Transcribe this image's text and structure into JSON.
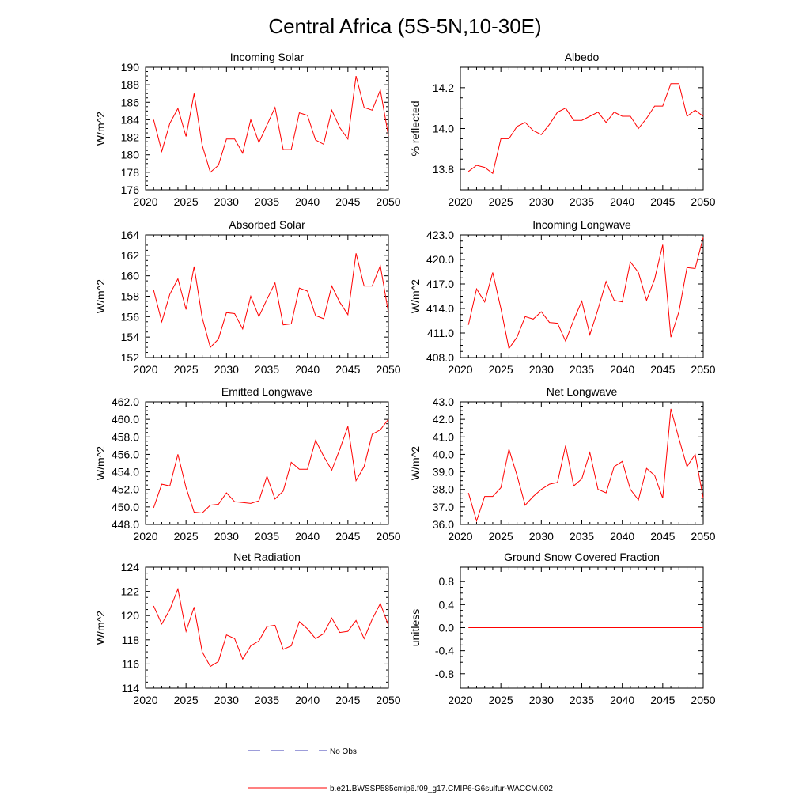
{
  "page_title": "Central Africa (5S-5N,10-30E)",
  "legend": {
    "obs_label": "No Obs",
    "obs_color": "#3b3bb5",
    "model_label": "b.e21.BWSSP585cmip6.f09_g17.CMIP6-G6sulfur-WACCM.002",
    "model_color": "#ff0000"
  },
  "chart_data": [
    {
      "type": "line",
      "title": "Incoming Solar",
      "ylabel": "W/m^2",
      "xlim": [
        2020,
        2050
      ],
      "ylim": [
        176,
        190
      ],
      "xticks": [
        "2020",
        "2025",
        "2030",
        "2035",
        "2040",
        "2045",
        "2050"
      ],
      "yticks": [
        "176",
        "178",
        "180",
        "182",
        "184",
        "186",
        "188",
        "190"
      ],
      "x": [
        2021,
        2022,
        2023,
        2024,
        2025,
        2026,
        2027,
        2028,
        2029,
        2030,
        2031,
        2032,
        2033,
        2034,
        2035,
        2036,
        2037,
        2038,
        2039,
        2040,
        2041,
        2042,
        2043,
        2044,
        2045,
        2046,
        2047,
        2048,
        2049,
        2050
      ],
      "series": [
        {
          "values": [
            184.0,
            180.4,
            183.6,
            185.3,
            182.1,
            187.0,
            181.1,
            178.0,
            178.8,
            181.8,
            181.8,
            180.2,
            184.0,
            181.4,
            183.4,
            185.4,
            180.6,
            180.6,
            184.8,
            184.5,
            181.7,
            181.2,
            185.1,
            183.1,
            181.8,
            189.0,
            185.4,
            185.1,
            187.4,
            182.2
          ]
        }
      ]
    },
    {
      "type": "line",
      "title": "Albedo",
      "ylabel": "% reflected",
      "xlim": [
        2020,
        2050
      ],
      "ylim": [
        13.7,
        14.3
      ],
      "xticks": [
        "2020",
        "2025",
        "2030",
        "2035",
        "2040",
        "2045",
        "2050"
      ],
      "yticks": [
        "13.8",
        "14.0",
        "14.2"
      ],
      "x": [
        2021,
        2022,
        2023,
        2024,
        2025,
        2026,
        2027,
        2028,
        2029,
        2030,
        2031,
        2032,
        2033,
        2034,
        2035,
        2036,
        2037,
        2038,
        2039,
        2040,
        2041,
        2042,
        2043,
        2044,
        2045,
        2046,
        2047,
        2048,
        2049,
        2050
      ],
      "series": [
        {
          "values": [
            13.79,
            13.82,
            13.81,
            13.78,
            13.95,
            13.95,
            14.01,
            14.03,
            13.99,
            13.97,
            14.02,
            14.08,
            14.1,
            14.04,
            14.04,
            14.06,
            14.08,
            14.03,
            14.08,
            14.06,
            14.06,
            14.0,
            14.05,
            14.11,
            14.11,
            14.22,
            14.22,
            14.06,
            14.09,
            14.06
          ]
        }
      ]
    },
    {
      "type": "line",
      "title": "Absorbed Solar",
      "ylabel": "W/m^2",
      "xlim": [
        2020,
        2050
      ],
      "ylim": [
        152,
        164
      ],
      "xticks": [
        "2020",
        "2025",
        "2030",
        "2035",
        "2040",
        "2045",
        "2050"
      ],
      "yticks": [
        "152",
        "154",
        "156",
        "158",
        "160",
        "162",
        "164"
      ],
      "x": [
        2021,
        2022,
        2023,
        2024,
        2025,
        2026,
        2027,
        2028,
        2029,
        2030,
        2031,
        2032,
        2033,
        2034,
        2035,
        2036,
        2037,
        2038,
        2039,
        2040,
        2041,
        2042,
        2043,
        2044,
        2045,
        2046,
        2047,
        2048,
        2049,
        2050
      ],
      "series": [
        {
          "values": [
            158.6,
            155.5,
            158.2,
            159.7,
            156.7,
            160.9,
            155.9,
            153.0,
            153.8,
            156.4,
            156.3,
            154.8,
            158.0,
            156.0,
            157.7,
            159.3,
            155.2,
            155.3,
            158.8,
            158.5,
            156.1,
            155.8,
            159.0,
            157.4,
            156.2,
            162.2,
            159.0,
            159.0,
            161.0,
            156.4
          ]
        }
      ]
    },
    {
      "type": "line",
      "title": "Incoming Longwave",
      "ylabel": "W/m^2",
      "xlim": [
        2020,
        2050
      ],
      "ylim": [
        408.0,
        423.0
      ],
      "xticks": [
        "2020",
        "2025",
        "2030",
        "2035",
        "2040",
        "2045",
        "2050"
      ],
      "yticks": [
        "408.0",
        "411.0",
        "414.0",
        "417.0",
        "420.0",
        "423.0"
      ],
      "x": [
        2021,
        2022,
        2023,
        2024,
        2025,
        2026,
        2027,
        2028,
        2029,
        2030,
        2031,
        2032,
        2033,
        2034,
        2035,
        2036,
        2037,
        2038,
        2039,
        2040,
        2041,
        2042,
        2043,
        2044,
        2045,
        2046,
        2047,
        2048,
        2049,
        2050
      ],
      "series": [
        {
          "values": [
            412.0,
            416.4,
            414.8,
            418.4,
            414.0,
            409.1,
            410.5,
            413.0,
            412.7,
            413.6,
            412.3,
            412.2,
            410.0,
            412.6,
            414.9,
            410.8,
            413.9,
            417.3,
            415.0,
            414.8,
            419.7,
            418.4,
            415.0,
            417.6,
            421.8,
            410.5,
            413.6,
            419.0,
            418.9,
            422.7
          ]
        }
      ]
    },
    {
      "type": "line",
      "title": "Emitted Longwave",
      "ylabel": "W/m^2",
      "xlim": [
        2020,
        2050
      ],
      "ylim": [
        448.0,
        462.0
      ],
      "xticks": [
        "2020",
        "2025",
        "2030",
        "2035",
        "2040",
        "2045",
        "2050"
      ],
      "yticks": [
        "448.0",
        "450.0",
        "452.0",
        "454.0",
        "456.0",
        "458.0",
        "460.0",
        "462.0"
      ],
      "x": [
        2021,
        2022,
        2023,
        2024,
        2025,
        2026,
        2027,
        2028,
        2029,
        2030,
        2031,
        2032,
        2033,
        2034,
        2035,
        2036,
        2037,
        2038,
        2039,
        2040,
        2041,
        2042,
        2043,
        2044,
        2045,
        2046,
        2047,
        2048,
        2049,
        2050
      ],
      "series": [
        {
          "values": [
            449.9,
            452.6,
            452.4,
            456.0,
            452.2,
            449.4,
            449.3,
            450.2,
            450.3,
            451.6,
            450.6,
            450.5,
            450.4,
            450.7,
            453.5,
            450.9,
            451.8,
            455.1,
            454.3,
            454.3,
            457.6,
            455.8,
            454.2,
            456.6,
            459.2,
            453.0,
            454.6,
            458.3,
            458.8,
            460.0
          ]
        }
      ]
    },
    {
      "type": "line",
      "title": "Net Longwave",
      "ylabel": "W/m^2",
      "xlim": [
        2020,
        2050
      ],
      "ylim": [
        36.0,
        43.0
      ],
      "xticks": [
        "2020",
        "2025",
        "2030",
        "2035",
        "2040",
        "2045",
        "2050"
      ],
      "yticks": [
        "36.0",
        "37.0",
        "38.0",
        "39.0",
        "40.0",
        "41.0",
        "42.0",
        "43.0"
      ],
      "x": [
        2021,
        2022,
        2023,
        2024,
        2025,
        2026,
        2027,
        2028,
        2029,
        2030,
        2031,
        2032,
        2033,
        2034,
        2035,
        2036,
        2037,
        2038,
        2039,
        2040,
        2041,
        2042,
        2043,
        2044,
        2045,
        2046,
        2047,
        2048,
        2049,
        2050
      ],
      "series": [
        {
          "values": [
            37.8,
            36.2,
            37.6,
            37.6,
            38.1,
            40.3,
            38.8,
            37.1,
            37.6,
            38.0,
            38.3,
            38.4,
            40.5,
            38.2,
            38.6,
            40.1,
            38.0,
            37.8,
            39.3,
            39.6,
            38.0,
            37.4,
            39.2,
            38.8,
            37.5,
            42.6,
            40.9,
            39.3,
            40.0,
            37.5
          ]
        }
      ]
    },
    {
      "type": "line",
      "title": "Net Radiation",
      "ylabel": "W/m^2",
      "xlim": [
        2020,
        2050
      ],
      "ylim": [
        114,
        124
      ],
      "xticks": [
        "2020",
        "2025",
        "2030",
        "2035",
        "2040",
        "2045",
        "2050"
      ],
      "yticks": [
        "114",
        "116",
        "118",
        "120",
        "122",
        "124"
      ],
      "x": [
        2021,
        2022,
        2023,
        2024,
        2025,
        2026,
        2027,
        2028,
        2029,
        2030,
        2031,
        2032,
        2033,
        2034,
        2035,
        2036,
        2037,
        2038,
        2039,
        2040,
        2041,
        2042,
        2043,
        2044,
        2045,
        2046,
        2047,
        2048,
        2049,
        2050
      ],
      "series": [
        {
          "values": [
            120.8,
            119.3,
            120.5,
            122.2,
            118.7,
            120.7,
            117.0,
            115.8,
            116.2,
            118.4,
            118.1,
            116.4,
            117.5,
            117.9,
            119.1,
            119.2,
            117.2,
            117.5,
            119.5,
            118.9,
            118.1,
            118.5,
            119.8,
            118.6,
            118.7,
            119.6,
            118.1,
            119.7,
            121.0,
            119.2
          ]
        }
      ]
    },
    {
      "type": "line",
      "title": "Ground Snow Covered Fraction",
      "ylabel": "unitless",
      "xlim": [
        2020,
        2050
      ],
      "ylim": [
        -1.05,
        1.05
      ],
      "xticks": [
        "2020",
        "2025",
        "2030",
        "2035",
        "2040",
        "2045",
        "2050"
      ],
      "yticks": [
        "-0.8",
        "-0.4",
        "0.0",
        "0.4",
        "0.8"
      ],
      "x": [
        2021,
        2022,
        2023,
        2024,
        2025,
        2026,
        2027,
        2028,
        2029,
        2030,
        2031,
        2032,
        2033,
        2034,
        2035,
        2036,
        2037,
        2038,
        2039,
        2040,
        2041,
        2042,
        2043,
        2044,
        2045,
        2046,
        2047,
        2048,
        2049,
        2050
      ],
      "series": [
        {
          "values": [
            0,
            0,
            0,
            0,
            0,
            0,
            0,
            0,
            0,
            0,
            0,
            0,
            0,
            0,
            0,
            0,
            0,
            0,
            0,
            0,
            0,
            0,
            0,
            0,
            0,
            0,
            0,
            0,
            0,
            0
          ]
        }
      ]
    }
  ]
}
